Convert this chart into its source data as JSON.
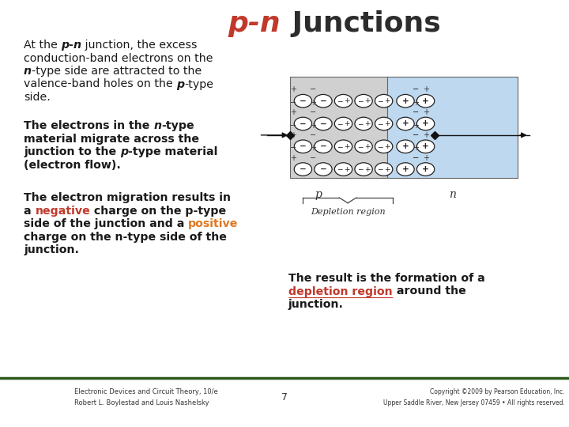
{
  "title_italic": "p-n",
  "title_normal": " Junctions",
  "title_color_italic": "#c0392b",
  "title_color_normal": "#2c2c2c",
  "title_fontsize": 26,
  "bg_color": "#ffffff",
  "negative_color": "#c0392b",
  "positive_color": "#e07820",
  "depletion_color": "#c0392b",
  "text_color": "#1a1a1a",
  "footer_line1": "Electronic Devices and Circuit Theory, 10/e",
  "footer_line2": "Robert L. Boylestad and Louis Nashelsky",
  "footer_page": "7",
  "footer_copyright": "Copyright ©2009 by Pearson Education, Inc.",
  "footer_address": "Upper Saddle River, New Jersey 07459 • All rights reserved.",
  "pearson_bg": "#2d6b2d",
  "footer_bar_color": "#2d5a1b"
}
